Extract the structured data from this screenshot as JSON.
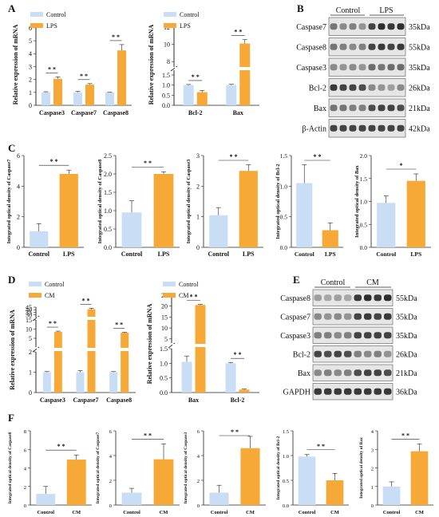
{
  "colors": {
    "control": "#c9def4",
    "treatment": "#f6a937",
    "band_dark": "#1a1a1a",
    "band_bg": "#e6e6e6"
  },
  "panels": [
    {
      "letter": "A"
    },
    {
      "letter": "B"
    },
    {
      "letter": "C"
    },
    {
      "letter": "D"
    },
    {
      "letter": "E"
    },
    {
      "letter": "F"
    }
  ],
  "chart_data": [
    {
      "panel": "A",
      "type": "bar",
      "ylabel": "Relative expression of  mRNA",
      "categories": [
        "Caspase3",
        "Caspase7",
        "Caspase8"
      ],
      "series": [
        {
          "name": "Control",
          "values": [
            1.0,
            1.0,
            1.0
          ],
          "errors": [
            0.05,
            0.08,
            0.02
          ]
        },
        {
          "name": "LPS",
          "values": [
            2.05,
            1.6,
            4.25
          ],
          "errors": [
            0.15,
            0.08,
            0.45
          ]
        }
      ],
      "yticks": [
        "0",
        "1",
        "2",
        "3",
        "4",
        "5",
        "6"
      ],
      "ylim": [
        0,
        6.3
      ],
      "significance": [
        "* *",
        "* *",
        "* *"
      ]
    },
    {
      "panel": "A",
      "type": "bar",
      "broken_axis": true,
      "ylabel": "Relative expression of  mRNA",
      "categories": [
        "Bcl-2",
        "Bax"
      ],
      "series": [
        {
          "name": "Control",
          "values": [
            1.0,
            1.0
          ],
          "errors": [
            0.03,
            0.04
          ]
        },
        {
          "name": "LPS",
          "values": [
            0.65,
            10.1
          ],
          "errors": [
            0.08,
            0.45
          ]
        }
      ],
      "yticks": [
        "0.0",
        "0.5",
        "1.0",
        "1.5",
        "8",
        "10",
        "12"
      ],
      "significance": [
        "* *",
        "* *"
      ]
    },
    {
      "panel": "B",
      "type": "blot",
      "groups": [
        "Control",
        "LPS"
      ],
      "rows": [
        {
          "label": "Caspase7",
          "size": "35kDa"
        },
        {
          "label": "Caspase8",
          "size": "55kDa"
        },
        {
          "label": "Caspase3",
          "size": "35kDa"
        },
        {
          "label": "Bcl-2",
          "size": "26kDa"
        },
        {
          "label": "Bax",
          "size": "21kDa"
        },
        {
          "label": "β-Actin",
          "size": "42kDa"
        }
      ]
    },
    {
      "panel": "C",
      "type": "bar",
      "ylabel": "Integrated optical density of Caspase7",
      "categories": [
        "Control",
        "LPS"
      ],
      "values": [
        1.05,
        4.8
      ],
      "errors": [
        0.5,
        0.25
      ],
      "yticks": [
        "0",
        "2",
        "4",
        "6"
      ],
      "ylim": [
        0,
        6
      ],
      "significance": "* *"
    },
    {
      "panel": "C",
      "type": "bar",
      "ylabel": "Integrated optical density of Caspase8",
      "categories": [
        "Control",
        "LPS"
      ],
      "values": [
        0.95,
        2.0
      ],
      "errors": [
        0.32,
        0.06
      ],
      "yticks": [
        "0.0",
        "0.5",
        "1.0",
        "1.5",
        "2.0",
        "2.5"
      ],
      "ylim": [
        0,
        2.5
      ],
      "significance": "* *"
    },
    {
      "panel": "C",
      "type": "bar",
      "ylabel": "Integrated optical density of Caspase3",
      "categories": [
        "Control",
        "LPS"
      ],
      "values": [
        1.05,
        2.5
      ],
      "errors": [
        0.25,
        0.2
      ],
      "yticks": [
        "0",
        "1",
        "2",
        "3"
      ],
      "ylim": [
        0,
        3
      ],
      "significance": "* *"
    },
    {
      "panel": "C",
      "type": "bar",
      "ylabel": "Integrated optical density of Bcl-2",
      "categories": [
        "Control",
        "LPS"
      ],
      "values": [
        1.05,
        0.28
      ],
      "errors": [
        0.3,
        0.12
      ],
      "yticks": [
        "0.0",
        "0.5",
        "1.0",
        "1.5"
      ],
      "ylim": [
        0,
        1.5
      ],
      "significance": "* *"
    },
    {
      "panel": "C",
      "type": "bar",
      "ylabel": "Integrated optical density of Bax",
      "categories": [
        "Control",
        "LPS"
      ],
      "values": [
        0.97,
        1.45
      ],
      "errors": [
        0.15,
        0.15
      ],
      "yticks": [
        "0.0",
        "0.5",
        "1.0",
        "1.5",
        "2.0"
      ],
      "ylim": [
        0,
        2
      ],
      "significance": "*"
    },
    {
      "panel": "D",
      "type": "bar",
      "broken_axis": true,
      "ylabel": "Relative expression of  mRNA",
      "categories": [
        "Caspase3",
        "Caspase7",
        "Caspase8"
      ],
      "series": [
        {
          "name": "Control",
          "values": [
            1.0,
            1.0,
            1.0
          ],
          "errors": [
            0.03,
            0.08,
            0.03
          ]
        },
        {
          "name": "CM",
          "values": [
            8.5,
            41.0,
            8.0
          ],
          "errors": [
            0.4,
            2.0,
            0.3
          ]
        }
      ],
      "yticks": [
        "0",
        "1",
        "2",
        "5",
        "10",
        "15",
        "30",
        "35",
        "40",
        "45"
      ],
      "significance": [
        "* *",
        "* *",
        "* *"
      ]
    },
    {
      "panel": "D",
      "type": "bar",
      "broken_axis": true,
      "ylabel": "Relative expression of  mRNA",
      "categories": [
        "Bax",
        "Bcl-2"
      ],
      "series": [
        {
          "name": "Control",
          "values": [
            1.05,
            1.0
          ],
          "errors": [
            0.2,
            0.03
          ]
        },
        {
          "name": "CM",
          "values": [
            20.5,
            0.1
          ],
          "errors": [
            0.3,
            0.02
          ]
        }
      ],
      "yticks": [
        "0.0",
        "0.5",
        "1.0",
        "1.5",
        "5",
        "10",
        "15",
        "20",
        "25"
      ],
      "significance": [
        "* *",
        "* *"
      ]
    },
    {
      "panel": "E",
      "type": "blot",
      "groups": [
        "Control",
        "CM"
      ],
      "rows": [
        {
          "label": "Caspase8",
          "size": "55kDa"
        },
        {
          "label": "Caspase7",
          "size": "35kDa"
        },
        {
          "label": "Caspase3",
          "size": "35kDa"
        },
        {
          "label": "Bcl-2",
          "size": "26kDa"
        },
        {
          "label": "Bax",
          "size": "21kDa"
        },
        {
          "label": "GAPDH",
          "size": "36kDa"
        }
      ]
    },
    {
      "panel": "F",
      "type": "bar",
      "ylabel": "Integrated optical density of Caspase8",
      "categories": [
        "Control",
        "CM"
      ],
      "values": [
        1.2,
        4.9
      ],
      "errors": [
        0.8,
        0.5
      ],
      "yticks": [
        "0",
        "2",
        "4",
        "6",
        "8"
      ],
      "ylim": [
        0,
        8
      ],
      "significance": "* *"
    },
    {
      "panel": "F",
      "type": "bar",
      "ylabel": "Integrated optical density of Caspase7",
      "categories": [
        "Control",
        "CM"
      ],
      "values": [
        1.0,
        3.7
      ],
      "errors": [
        0.35,
        1.25
      ],
      "yticks": [
        "0",
        "2",
        "4",
        "6"
      ],
      "ylim": [
        0,
        6
      ],
      "significance": "* *"
    },
    {
      "panel": "F",
      "type": "bar",
      "ylabel": "Integrated optical density of Caspase3",
      "categories": [
        "Control",
        "CM"
      ],
      "values": [
        1.0,
        4.6
      ],
      "errors": [
        0.6,
        0.95
      ],
      "yticks": [
        "0",
        "2",
        "4",
        "6"
      ],
      "ylim": [
        0,
        6
      ],
      "significance": "* *"
    },
    {
      "panel": "F",
      "type": "bar",
      "ylabel": "Integrated optical density of Bcl-2",
      "categories": [
        "Control",
        "CM"
      ],
      "values": [
        0.98,
        0.5
      ],
      "errors": [
        0.04,
        0.14
      ],
      "yticks": [
        "0.0",
        "0.5",
        "1.0",
        "1.5"
      ],
      "ylim": [
        0,
        1.5
      ],
      "significance": "* *"
    },
    {
      "panel": "F",
      "type": "bar",
      "ylabel": "Integrated optical density of Bax",
      "categories": [
        "Control",
        "CM"
      ],
      "values": [
        1.0,
        2.9
      ],
      "errors": [
        0.25,
        0.4
      ],
      "yticks": [
        "0",
        "1",
        "2",
        "3",
        "4"
      ],
      "ylim": [
        0,
        4
      ],
      "significance": "* *"
    }
  ]
}
